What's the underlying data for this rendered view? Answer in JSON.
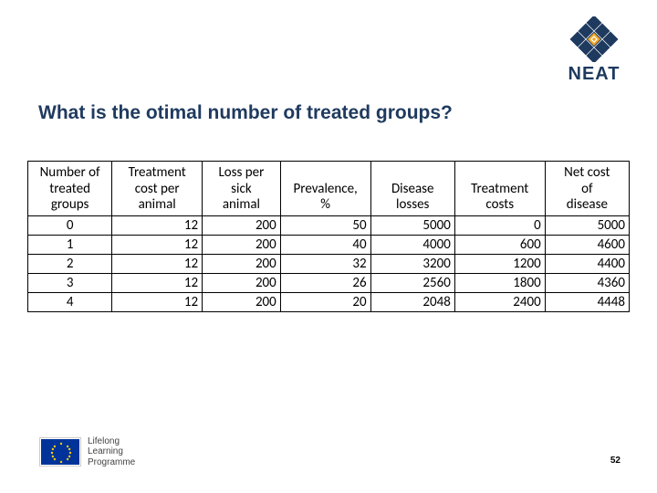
{
  "colors": {
    "brand_navy": "#1f3a5f",
    "brand_orange": "#f5a623",
    "eu_blue": "#003399",
    "eu_gold": "#ffcc00",
    "text": "#000000",
    "background": "#ffffff"
  },
  "logo": {
    "brand_name": "NEAT"
  },
  "title": "What is the otimal number of treated groups?",
  "table": {
    "columns": [
      "Number of treated groups",
      "Treatment cost per animal",
      "Loss per sick animal",
      "Prevalence, %",
      "Disease losses",
      "Treatment costs",
      "Net cost of disease"
    ],
    "col_widths_pct": [
      14,
      15,
      13,
      15,
      14,
      15,
      14
    ],
    "rows": [
      [
        "0",
        "12",
        "200",
        "50",
        "5000",
        "0",
        "5000"
      ],
      [
        "1",
        "12",
        "200",
        "40",
        "4000",
        "600",
        "4600"
      ],
      [
        "2",
        "12",
        "200",
        "32",
        "3200",
        "1200",
        "4400"
      ],
      [
        "3",
        "12",
        "200",
        "26",
        "2560",
        "1800",
        "4360"
      ],
      [
        "4",
        "12",
        "200",
        "20",
        "2048",
        "2400",
        "4448"
      ]
    ]
  },
  "footer": {
    "programme_line1": "Lifelong",
    "programme_line2": "Learning",
    "programme_line3": "Programme"
  },
  "page_number": "52"
}
